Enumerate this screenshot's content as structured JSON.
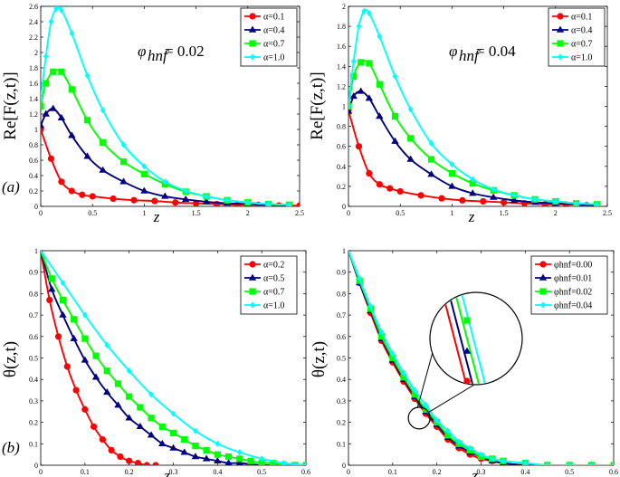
{
  "chart_data": [
    {
      "type": "line",
      "panel": "top-left",
      "panel_label": "(a)",
      "ylabel": "Re[F(z,t)]",
      "xlabel": "z",
      "annotation": {
        "symbol": "φ",
        "subscript": "hnf",
        "text": "= 0.02"
      },
      "xlim": [
        0,
        2.5
      ],
      "ylim": [
        0,
        2.6
      ],
      "xticks": [
        "0",
        "0.5",
        "1",
        "1.5",
        "2",
        "2.5"
      ],
      "yticks": [
        "0",
        "0.2",
        "0.4",
        "0.6",
        "0.8",
        "1",
        "1.2",
        "1.4",
        "1.6",
        "1.8",
        "2",
        "2.2",
        "2.4",
        "2.6"
      ],
      "legend_position": "top-right",
      "series": [
        {
          "name": "α=0.1",
          "color": "#ff0000",
          "marker": "circle",
          "x": [
            0,
            0.1,
            0.2,
            0.3,
            0.4,
            0.5,
            0.7,
            0.9,
            1.1,
            1.3,
            1.5,
            1.7,
            1.9,
            2.1,
            2.3,
            2.5
          ],
          "y": [
            1.0,
            0.62,
            0.32,
            0.2,
            0.15,
            0.13,
            0.1,
            0.08,
            0.07,
            0.05,
            0.04,
            0.03,
            0.02,
            0.02,
            0.01,
            0.01
          ]
        },
        {
          "name": "α=0.4",
          "color": "#000080",
          "marker": "triangle",
          "x": [
            0,
            0.05,
            0.12,
            0.2,
            0.3,
            0.45,
            0.6,
            0.8,
            1.0,
            1.2,
            1.4,
            1.6,
            1.8,
            2.0,
            2.2,
            2.4
          ],
          "y": [
            1.05,
            1.2,
            1.27,
            1.15,
            0.92,
            0.65,
            0.47,
            0.32,
            0.2,
            0.13,
            0.09,
            0.06,
            0.04,
            0.03,
            0.02,
            0.01
          ]
        },
        {
          "name": "α=0.7",
          "color": "#00ff00",
          "marker": "square",
          "x": [
            0,
            0.05,
            0.12,
            0.2,
            0.3,
            0.45,
            0.6,
            0.8,
            1.0,
            1.2,
            1.4,
            1.6,
            1.8,
            2.0,
            2.2,
            2.4
          ],
          "y": [
            1.3,
            1.6,
            1.75,
            1.75,
            1.52,
            1.12,
            0.83,
            0.58,
            0.42,
            0.29,
            0.19,
            0.13,
            0.08,
            0.05,
            0.03,
            0.02
          ]
        },
        {
          "name": "α=1.0",
          "color": "#00ffff",
          "marker": "diamond",
          "x": [
            0,
            0.05,
            0.1,
            0.15,
            0.2,
            0.3,
            0.45,
            0.6,
            0.8,
            1.0,
            1.2,
            1.4,
            1.6,
            1.8,
            2.0,
            2.2,
            2.4
          ],
          "y": [
            1.4,
            1.95,
            2.4,
            2.57,
            2.55,
            2.25,
            1.7,
            1.25,
            0.8,
            0.52,
            0.32,
            0.2,
            0.13,
            0.08,
            0.05,
            0.03,
            0.02
          ]
        }
      ]
    },
    {
      "type": "line",
      "panel": "top-right",
      "ylabel": "Re[F(z,t)]",
      "xlabel": "z",
      "annotation": {
        "symbol": "φ",
        "subscript": "hnf",
        "text": "= 0.04"
      },
      "xlim": [
        0,
        2.5
      ],
      "ylim": [
        0,
        2.0
      ],
      "xticks": [
        "0",
        "0.5",
        "1",
        "1.5",
        "2",
        "2.5"
      ],
      "yticks": [
        "0",
        "0.2",
        "0.4",
        "0.6",
        "0.8",
        "1",
        "1.2",
        "1.4",
        "1.6",
        "1.8",
        "2"
      ],
      "legend_position": "top-right",
      "series": [
        {
          "name": "α=0.1",
          "color": "#ff0000",
          "marker": "circle",
          "x": [
            0,
            0.1,
            0.2,
            0.3,
            0.4,
            0.5,
            0.7,
            0.9,
            1.1,
            1.3,
            1.5,
            1.7,
            1.9,
            2.1,
            2.3,
            2.4
          ],
          "y": [
            0.96,
            0.6,
            0.33,
            0.22,
            0.18,
            0.15,
            0.11,
            0.08,
            0.06,
            0.05,
            0.04,
            0.03,
            0.02,
            0.02,
            0.01,
            0.01
          ]
        },
        {
          "name": "α=0.4",
          "color": "#000080",
          "marker": "triangle",
          "x": [
            0,
            0.05,
            0.12,
            0.2,
            0.3,
            0.45,
            0.6,
            0.8,
            1.0,
            1.2,
            1.4,
            1.6,
            1.8,
            2.0,
            2.2,
            2.4
          ],
          "y": [
            0.95,
            1.1,
            1.15,
            1.08,
            0.9,
            0.65,
            0.47,
            0.32,
            0.2,
            0.13,
            0.09,
            0.06,
            0.04,
            0.03,
            0.02,
            0.01
          ]
        },
        {
          "name": "α=0.7",
          "color": "#00ff00",
          "marker": "square",
          "x": [
            0,
            0.05,
            0.12,
            0.2,
            0.3,
            0.45,
            0.6,
            0.8,
            1.0,
            1.2,
            1.4,
            1.6,
            1.8,
            2.0,
            2.2,
            2.4
          ],
          "y": [
            1.0,
            1.3,
            1.44,
            1.43,
            1.22,
            0.9,
            0.68,
            0.47,
            0.33,
            0.23,
            0.16,
            0.11,
            0.07,
            0.05,
            0.03,
            0.02
          ]
        },
        {
          "name": "α=1.0",
          "color": "#00ffff",
          "marker": "diamond",
          "x": [
            0,
            0.05,
            0.1,
            0.15,
            0.2,
            0.3,
            0.45,
            0.6,
            0.8,
            1.0,
            1.2,
            1.4,
            1.6,
            1.8,
            2.0,
            2.2,
            2.4
          ],
          "y": [
            1.0,
            1.45,
            1.8,
            1.95,
            1.93,
            1.7,
            1.3,
            0.97,
            0.63,
            0.42,
            0.27,
            0.17,
            0.11,
            0.07,
            0.05,
            0.03,
            0.02
          ]
        }
      ]
    },
    {
      "type": "line",
      "panel": "bottom-left",
      "panel_label": "(b)",
      "ylabel": "θ(z,t)",
      "xlabel": "z",
      "xlim": [
        0,
        0.6
      ],
      "ylim": [
        0,
        1
      ],
      "xticks": [
        "0",
        "0.1",
        "0.2",
        "0.3",
        "0.4",
        "0.5",
        "0.6"
      ],
      "yticks": [
        "0",
        "0.1",
        "0.2",
        "0.3",
        "0.4",
        "0.5",
        "0.6",
        "0.7",
        "0.8",
        "0.9",
        "1"
      ],
      "legend_position": "top-right",
      "series": [
        {
          "name": "α=0.2",
          "color": "#ff0000",
          "marker": "circle",
          "x": [
            0,
            0.02,
            0.04,
            0.06,
            0.08,
            0.1,
            0.12,
            0.14,
            0.16,
            0.18,
            0.2,
            0.22,
            0.24,
            0.26
          ],
          "y": [
            1.0,
            0.77,
            0.6,
            0.46,
            0.35,
            0.26,
            0.18,
            0.12,
            0.07,
            0.04,
            0.02,
            0.01,
            0.0,
            0.0
          ]
        },
        {
          "name": "α=0.5",
          "color": "#000080",
          "marker": "triangle",
          "x": [
            0,
            0.025,
            0.05,
            0.075,
            0.1,
            0.125,
            0.15,
            0.175,
            0.2,
            0.225,
            0.25,
            0.275,
            0.3,
            0.325,
            0.35,
            0.375,
            0.4,
            0.425,
            0.45,
            0.5,
            0.55,
            0.6
          ],
          "y": [
            1.0,
            0.82,
            0.7,
            0.59,
            0.49,
            0.41,
            0.34,
            0.28,
            0.22,
            0.18,
            0.14,
            0.1,
            0.08,
            0.06,
            0.04,
            0.03,
            0.02,
            0.01,
            0.01,
            0.0,
            0.0,
            0.0
          ]
        },
        {
          "name": "α=0.7",
          "color": "#00ff00",
          "marker": "square",
          "x": [
            0,
            0.025,
            0.05,
            0.075,
            0.1,
            0.125,
            0.15,
            0.175,
            0.2,
            0.225,
            0.25,
            0.275,
            0.3,
            0.325,
            0.35,
            0.375,
            0.4,
            0.425,
            0.45,
            0.475,
            0.5,
            0.525,
            0.55,
            0.575,
            0.6
          ],
          "y": [
            1.0,
            0.87,
            0.77,
            0.68,
            0.59,
            0.51,
            0.44,
            0.38,
            0.32,
            0.27,
            0.22,
            0.18,
            0.15,
            0.12,
            0.09,
            0.07,
            0.05,
            0.04,
            0.03,
            0.02,
            0.01,
            0.01,
            0.0,
            0.0,
            0.0
          ]
        },
        {
          "name": "α=1.0",
          "color": "#00ffff",
          "marker": "diamond",
          "x": [
            0,
            0.05,
            0.1,
            0.15,
            0.2,
            0.25,
            0.3,
            0.35,
            0.4,
            0.45,
            0.5,
            0.55,
            0.6
          ],
          "y": [
            1.0,
            0.85,
            0.7,
            0.56,
            0.44,
            0.33,
            0.24,
            0.16,
            0.1,
            0.06,
            0.03,
            0.01,
            0.0
          ]
        }
      ]
    },
    {
      "type": "line",
      "panel": "bottom-right",
      "ylabel": "θ(z,t)",
      "xlabel": "z",
      "xlim": [
        0,
        0.6
      ],
      "ylim": [
        0,
        1
      ],
      "xticks": [
        "0",
        "0.1",
        "0.2",
        "0.3",
        "0.4",
        "0.5",
        "0.6"
      ],
      "yticks": [
        "0",
        "0.1",
        "0.2",
        "0.3",
        "0.4",
        "0.5",
        "0.6",
        "0.7",
        "0.8",
        "0.9",
        "1"
      ],
      "legend_position": "top-right",
      "inset": "magnified view around z≈0.16",
      "series": [
        {
          "name": "φhnf=0.00",
          "color": "#ff0000",
          "marker": "circle",
          "x": [
            0,
            0.025,
            0.05,
            0.075,
            0.1,
            0.125,
            0.15,
            0.175,
            0.2,
            0.225,
            0.25,
            0.275,
            0.3,
            0.325,
            0.35,
            0.4,
            0.45,
            0.5,
            0.55,
            0.6
          ],
          "y": [
            1.0,
            0.85,
            0.71,
            0.58,
            0.48,
            0.39,
            0.31,
            0.24,
            0.18,
            0.12,
            0.08,
            0.05,
            0.03,
            0.02,
            0.01,
            0.0,
            0.0,
            0.0,
            0.0,
            0.0
          ]
        },
        {
          "name": "φhnf=0.01",
          "color": "#000080",
          "marker": "triangle",
          "x": [
            0,
            0.025,
            0.05,
            0.075,
            0.1,
            0.125,
            0.15,
            0.175,
            0.2,
            0.225,
            0.25,
            0.275,
            0.3,
            0.325,
            0.35,
            0.4,
            0.45,
            0.5,
            0.55,
            0.6
          ],
          "y": [
            1.0,
            0.85,
            0.72,
            0.59,
            0.49,
            0.4,
            0.32,
            0.25,
            0.19,
            0.13,
            0.09,
            0.06,
            0.04,
            0.02,
            0.01,
            0.0,
            0.0,
            0.0,
            0.0,
            0.0
          ]
        },
        {
          "name": "φhnf=0.02",
          "color": "#00ff00",
          "marker": "square",
          "x": [
            0,
            0.025,
            0.05,
            0.075,
            0.1,
            0.125,
            0.15,
            0.175,
            0.2,
            0.225,
            0.25,
            0.275,
            0.3,
            0.325,
            0.35,
            0.4,
            0.45,
            0.5,
            0.55,
            0.6
          ],
          "y": [
            1.0,
            0.86,
            0.73,
            0.6,
            0.5,
            0.41,
            0.33,
            0.26,
            0.2,
            0.14,
            0.1,
            0.07,
            0.04,
            0.03,
            0.02,
            0.01,
            0.0,
            0.0,
            0.0,
            0.0
          ]
        },
        {
          "name": "φhnf=0.04",
          "color": "#00ffff",
          "marker": "diamond",
          "x": [
            0,
            0.025,
            0.05,
            0.075,
            0.1,
            0.125,
            0.15,
            0.175,
            0.2,
            0.225,
            0.25,
            0.275,
            0.3,
            0.325,
            0.35,
            0.4,
            0.45,
            0.5,
            0.55,
            0.6
          ],
          "y": [
            1.0,
            0.87,
            0.74,
            0.62,
            0.52,
            0.43,
            0.35,
            0.28,
            0.21,
            0.16,
            0.11,
            0.08,
            0.05,
            0.03,
            0.02,
            0.01,
            0.0,
            0.0,
            0.0,
            0.0
          ]
        }
      ]
    }
  ]
}
